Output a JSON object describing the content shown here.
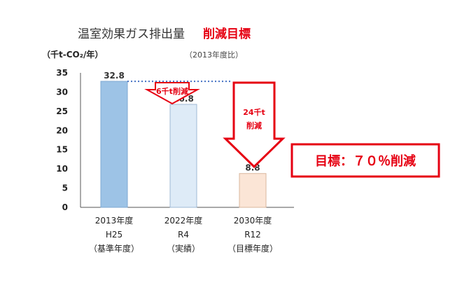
{
  "chart_data": {
    "type": "bar",
    "title": "温室効果ガス排出量",
    "title_emphasis": "削減目標",
    "y_unit_label": "（千t-CO₂/年）",
    "note": "（2013年度比）",
    "ylim": [
      0,
      35
    ],
    "yticks": [
      0,
      5,
      10,
      15,
      20,
      25,
      30,
      35
    ],
    "categories": [
      {
        "year": "2013年度",
        "era": "H25",
        "desc": "（基準年度）"
      },
      {
        "year": "2022年度",
        "era": "R4",
        "desc": "（実績）"
      },
      {
        "year": "2030年度",
        "era": "R12",
        "desc": "（目標年度）"
      }
    ],
    "values": [
      32.8,
      26.8,
      8.8
    ],
    "value_labels": [
      "32.8",
      "26.8",
      "8.8"
    ],
    "reduction_labels": [
      "6千t削減",
      "24千t",
      "削減"
    ],
    "target_label": "目標：７０％削減",
    "colors": {
      "bars": [
        "#9dc3e6",
        "#deebf7",
        "#fbe5d6"
      ],
      "bar_borders": [
        "#7fa9d3",
        "#9fb8d4",
        "#d9b79d"
      ],
      "accent": "#e60012",
      "dotted_line": "#4472c4"
    }
  }
}
